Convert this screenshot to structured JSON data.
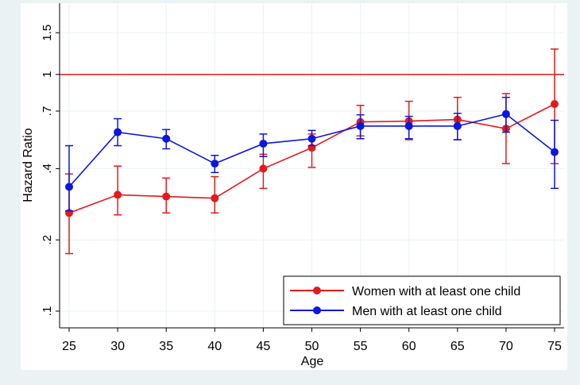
{
  "chart_data": {
    "type": "line",
    "xlabel": "Age",
    "ylabel": "Hazard Ratio",
    "y_scale": "log",
    "xlim": [
      25,
      75
    ],
    "ylim": [
      0.085,
      2.0
    ],
    "x_ticks": [
      25,
      30,
      35,
      40,
      45,
      50,
      55,
      60,
      65,
      70,
      75
    ],
    "x_tick_labels": [
      "25",
      "30",
      "35",
      "40",
      "45",
      "50",
      "55",
      "60",
      "65",
      "70",
      "75"
    ],
    "y_ticks": [
      0.1,
      0.2,
      0.4,
      0.7,
      1,
      1.5
    ],
    "y_tick_labels": [
      ".1",
      ".2",
      ".4",
      ".7",
      "1",
      "1.5"
    ],
    "grid": true,
    "reference_line": {
      "y": 1,
      "color": "#e31a1c"
    },
    "legend_position": "bottom-right",
    "x": [
      25,
      30,
      35,
      40,
      45,
      50,
      55,
      60,
      65,
      70,
      75
    ],
    "series": [
      {
        "name": "Women with at least one child",
        "color": "#e31a1c",
        "values": [
          0.26,
          0.31,
          0.305,
          0.3,
          0.4,
          0.49,
          0.63,
          0.635,
          0.645,
          0.59,
          0.75
        ],
        "ci_low": [
          0.175,
          0.255,
          0.26,
          0.26,
          0.33,
          0.405,
          0.55,
          0.53,
          0.53,
          0.42,
          0.42
        ],
        "ci_high": [
          0.38,
          0.41,
          0.365,
          0.37,
          0.46,
          0.56,
          0.74,
          0.77,
          0.8,
          0.83,
          1.28
        ]
      },
      {
        "name": "Men with at least one child",
        "color": "#0b16e0",
        "values": [
          0.335,
          0.57,
          0.535,
          0.42,
          0.51,
          0.535,
          0.605,
          0.605,
          0.605,
          0.68,
          0.47
        ],
        "ci_low": [
          0.265,
          0.5,
          0.485,
          0.385,
          0.45,
          0.5,
          0.535,
          0.535,
          0.53,
          0.57,
          0.33
        ],
        "ci_high": [
          0.5,
          0.65,
          0.585,
          0.455,
          0.56,
          0.58,
          0.675,
          0.665,
          0.685,
          0.8,
          0.64
        ]
      }
    ]
  }
}
